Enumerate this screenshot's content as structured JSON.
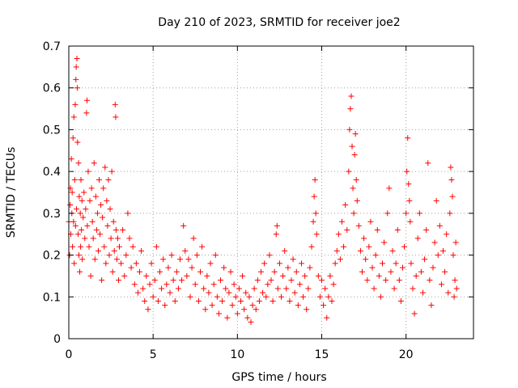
{
  "chart_data": {
    "type": "scatter",
    "title": "Day 210 of 2023, SRMTID for receiver joe2",
    "xlabel": "GPS time / hours",
    "ylabel": "SRMTID / TECUs",
    "xlim": [
      0,
      24
    ],
    "ylim": [
      0,
      0.7
    ],
    "xticks": [
      0,
      5,
      10,
      15,
      20
    ],
    "yticks": [
      0,
      0.1,
      0.2,
      0.3,
      0.4,
      0.5,
      0.6,
      0.7
    ],
    "grid": true,
    "marker": "+",
    "color": "#ff0000",
    "series": [
      {
        "name": "SRMTID",
        "points": [
          [
            0.0,
            0.28
          ],
          [
            0.05,
            0.2
          ],
          [
            0.08,
            0.32
          ],
          [
            0.1,
            0.36
          ],
          [
            0.12,
            0.25
          ],
          [
            0.15,
            0.43
          ],
          [
            0.18,
            0.3
          ],
          [
            0.2,
            0.35
          ],
          [
            0.22,
            0.22
          ],
          [
            0.25,
            0.48
          ],
          [
            0.28,
            0.28
          ],
          [
            0.3,
            0.53
          ],
          [
            0.32,
            0.18
          ],
          [
            0.35,
            0.38
          ],
          [
            0.38,
            0.56
          ],
          [
            0.4,
            0.27
          ],
          [
            0.42,
            0.62
          ],
          [
            0.44,
            0.65
          ],
          [
            0.46,
            0.31
          ],
          [
            0.48,
            0.67
          ],
          [
            0.5,
            0.6
          ],
          [
            0.52,
            0.47
          ],
          [
            0.55,
            0.25
          ],
          [
            0.58,
            0.42
          ],
          [
            0.6,
            0.2
          ],
          [
            0.62,
            0.34
          ],
          [
            0.65,
            0.16
          ],
          [
            0.68,
            0.3
          ],
          [
            0.7,
            0.22
          ],
          [
            0.72,
            0.38
          ],
          [
            0.75,
            0.26
          ],
          [
            0.78,
            0.33
          ],
          [
            0.8,
            0.19
          ],
          [
            0.85,
            0.29
          ],
          [
            0.9,
            0.35
          ],
          [
            0.95,
            0.24
          ],
          [
            1.0,
            0.31
          ],
          [
            1.05,
            0.54
          ],
          [
            1.08,
            0.57
          ],
          [
            1.1,
            0.27
          ],
          [
            1.15,
            0.4
          ],
          [
            1.2,
            0.22
          ],
          [
            1.25,
            0.33
          ],
          [
            1.3,
            0.15
          ],
          [
            1.35,
            0.36
          ],
          [
            1.4,
            0.28
          ],
          [
            1.45,
            0.24
          ],
          [
            1.5,
            0.42
          ],
          [
            1.55,
            0.19
          ],
          [
            1.6,
            0.34
          ],
          [
            1.65,
            0.26
          ],
          [
            1.7,
            0.3
          ],
          [
            1.75,
            0.21
          ],
          [
            1.8,
            0.38
          ],
          [
            1.85,
            0.25
          ],
          [
            1.9,
            0.32
          ],
          [
            1.95,
            0.14
          ],
          [
            2.0,
            0.29
          ],
          [
            2.05,
            0.36
          ],
          [
            2.1,
            0.22
          ],
          [
            2.15,
            0.41
          ],
          [
            2.2,
            0.18
          ],
          [
            2.25,
            0.33
          ],
          [
            2.3,
            0.27
          ],
          [
            2.35,
            0.38
          ],
          [
            2.4,
            0.2
          ],
          [
            2.45,
            0.31
          ],
          [
            2.5,
            0.24
          ],
          [
            2.55,
            0.4
          ],
          [
            2.6,
            0.16
          ],
          [
            2.65,
            0.28
          ],
          [
            2.7,
            0.21
          ],
          [
            2.75,
            0.56
          ],
          [
            2.78,
            0.53
          ],
          [
            2.8,
            0.26
          ],
          [
            2.85,
            0.19
          ],
          [
            2.9,
            0.24
          ],
          [
            2.95,
            0.14
          ],
          [
            3.0,
            0.22
          ],
          [
            3.1,
            0.18
          ],
          [
            3.2,
            0.26
          ],
          [
            3.3,
            0.15
          ],
          [
            3.4,
            0.2
          ],
          [
            3.5,
            0.3
          ],
          [
            3.6,
            0.24
          ],
          [
            3.7,
            0.17
          ],
          [
            3.8,
            0.22
          ],
          [
            3.9,
            0.13
          ],
          [
            4.0,
            0.18
          ],
          [
            4.1,
            0.11
          ],
          [
            4.2,
            0.16
          ],
          [
            4.3,
            0.21
          ],
          [
            4.4,
            0.12
          ],
          [
            4.5,
            0.09
          ],
          [
            4.6,
            0.15
          ],
          [
            4.7,
            0.07
          ],
          [
            4.8,
            0.13
          ],
          [
            4.9,
            0.18
          ],
          [
            5.0,
            0.1
          ],
          [
            5.1,
            0.14
          ],
          [
            5.2,
            0.22
          ],
          [
            5.3,
            0.09
          ],
          [
            5.4,
            0.16
          ],
          [
            5.5,
            0.12
          ],
          [
            5.6,
            0.19
          ],
          [
            5.7,
            0.08
          ],
          [
            5.8,
            0.13
          ],
          [
            5.9,
            0.17
          ],
          [
            6.0,
            0.11
          ],
          [
            6.1,
            0.2
          ],
          [
            6.2,
            0.14
          ],
          [
            6.3,
            0.09
          ],
          [
            6.4,
            0.16
          ],
          [
            6.5,
            0.12
          ],
          [
            6.6,
            0.19
          ],
          [
            6.7,
            0.14
          ],
          [
            6.8,
            0.27
          ],
          [
            6.9,
            0.21
          ],
          [
            7.0,
            0.15
          ],
          [
            7.1,
            0.19
          ],
          [
            7.2,
            0.1
          ],
          [
            7.3,
            0.17
          ],
          [
            7.4,
            0.24
          ],
          [
            7.5,
            0.13
          ],
          [
            7.6,
            0.2
          ],
          [
            7.7,
            0.09
          ],
          [
            7.8,
            0.16
          ],
          [
            7.9,
            0.22
          ],
          [
            8.0,
            0.12
          ],
          [
            8.1,
            0.07
          ],
          [
            8.2,
            0.15
          ],
          [
            8.3,
            0.11
          ],
          [
            8.4,
            0.18
          ],
          [
            8.5,
            0.08
          ],
          [
            8.6,
            0.13
          ],
          [
            8.7,
            0.2
          ],
          [
            8.8,
            0.1
          ],
          [
            8.9,
            0.06
          ],
          [
            9.0,
            0.14
          ],
          [
            9.1,
            0.09
          ],
          [
            9.2,
            0.17
          ],
          [
            9.3,
            0.12
          ],
          [
            9.4,
            0.05
          ],
          [
            9.5,
            0.11
          ],
          [
            9.6,
            0.16
          ],
          [
            9.7,
            0.08
          ],
          [
            9.8,
            0.13
          ],
          [
            9.9,
            0.1
          ],
          [
            10.0,
            0.06
          ],
          [
            10.1,
            0.12
          ],
          [
            10.2,
            0.09
          ],
          [
            10.3,
            0.15
          ],
          [
            10.4,
            0.07
          ],
          [
            10.5,
            0.11
          ],
          [
            10.6,
            0.05
          ],
          [
            10.7,
            0.1
          ],
          [
            10.8,
            0.04
          ],
          [
            10.9,
            0.08
          ],
          [
            11.0,
            0.12
          ],
          [
            11.1,
            0.07
          ],
          [
            11.2,
            0.14
          ],
          [
            11.3,
            0.09
          ],
          [
            11.4,
            0.16
          ],
          [
            11.5,
            0.11
          ],
          [
            11.6,
            0.18
          ],
          [
            11.7,
            0.1
          ],
          [
            11.8,
            0.13
          ],
          [
            11.9,
            0.2
          ],
          [
            12.0,
            0.14
          ],
          [
            12.1,
            0.09
          ],
          [
            12.2,
            0.16
          ],
          [
            12.3,
            0.25
          ],
          [
            12.35,
            0.27
          ],
          [
            12.4,
            0.12
          ],
          [
            12.5,
            0.18
          ],
          [
            12.6,
            0.1
          ],
          [
            12.7,
            0.15
          ],
          [
            12.8,
            0.21
          ],
          [
            12.9,
            0.12
          ],
          [
            13.0,
            0.17
          ],
          [
            13.1,
            0.09
          ],
          [
            13.2,
            0.14
          ],
          [
            13.3,
            0.19
          ],
          [
            13.4,
            0.11
          ],
          [
            13.5,
            0.16
          ],
          [
            13.6,
            0.08
          ],
          [
            13.7,
            0.13
          ],
          [
            13.8,
            0.18
          ],
          [
            13.9,
            0.1
          ],
          [
            14.0,
            0.15
          ],
          [
            14.1,
            0.07
          ],
          [
            14.2,
            0.12
          ],
          [
            14.3,
            0.17
          ],
          [
            14.4,
            0.22
          ],
          [
            14.5,
            0.28
          ],
          [
            14.55,
            0.34
          ],
          [
            14.6,
            0.38
          ],
          [
            14.65,
            0.3
          ],
          [
            14.7,
            0.25
          ],
          [
            14.8,
            0.15
          ],
          [
            14.9,
            0.1
          ],
          [
            15.0,
            0.14
          ],
          [
            15.1,
            0.08
          ],
          [
            15.2,
            0.12
          ],
          [
            15.3,
            0.05
          ],
          [
            15.4,
            0.1
          ],
          [
            15.5,
            0.15
          ],
          [
            15.6,
            0.09
          ],
          [
            15.7,
            0.13
          ],
          [
            15.8,
            0.18
          ],
          [
            15.9,
            0.21
          ],
          [
            16.0,
            0.25
          ],
          [
            16.1,
            0.19
          ],
          [
            16.2,
            0.28
          ],
          [
            16.3,
            0.22
          ],
          [
            16.4,
            0.32
          ],
          [
            16.5,
            0.26
          ],
          [
            16.6,
            0.4
          ],
          [
            16.65,
            0.5
          ],
          [
            16.7,
            0.55
          ],
          [
            16.75,
            0.58
          ],
          [
            16.8,
            0.46
          ],
          [
            16.85,
            0.36
          ],
          [
            16.9,
            0.3
          ],
          [
            16.95,
            0.44
          ],
          [
            17.0,
            0.49
          ],
          [
            17.05,
            0.38
          ],
          [
            17.1,
            0.33
          ],
          [
            17.2,
            0.27
          ],
          [
            17.3,
            0.21
          ],
          [
            17.4,
            0.16
          ],
          [
            17.5,
            0.24
          ],
          [
            17.6,
            0.19
          ],
          [
            17.7,
            0.14
          ],
          [
            17.8,
            0.22
          ],
          [
            17.9,
            0.28
          ],
          [
            18.0,
            0.17
          ],
          [
            18.1,
            0.12
          ],
          [
            18.2,
            0.2
          ],
          [
            18.3,
            0.26
          ],
          [
            18.4,
            0.15
          ],
          [
            18.5,
            0.1
          ],
          [
            18.6,
            0.18
          ],
          [
            18.7,
            0.23
          ],
          [
            18.8,
            0.14
          ],
          [
            18.9,
            0.3
          ],
          [
            19.0,
            0.36
          ],
          [
            19.1,
            0.16
          ],
          [
            19.2,
            0.21
          ],
          [
            19.3,
            0.12
          ],
          [
            19.4,
            0.18
          ],
          [
            19.5,
            0.26
          ],
          [
            19.6,
            0.14
          ],
          [
            19.7,
            0.09
          ],
          [
            19.8,
            0.17
          ],
          [
            19.9,
            0.22
          ],
          [
            20.0,
            0.3
          ],
          [
            20.05,
            0.4
          ],
          [
            20.1,
            0.48
          ],
          [
            20.15,
            0.37
          ],
          [
            20.2,
            0.33
          ],
          [
            20.25,
            0.28
          ],
          [
            20.3,
            0.18
          ],
          [
            20.4,
            0.12
          ],
          [
            20.5,
            0.06
          ],
          [
            20.6,
            0.15
          ],
          [
            20.7,
            0.24
          ],
          [
            20.8,
            0.3
          ],
          [
            20.9,
            0.16
          ],
          [
            21.0,
            0.11
          ],
          [
            21.1,
            0.19
          ],
          [
            21.2,
            0.26
          ],
          [
            21.3,
            0.42
          ],
          [
            21.4,
            0.14
          ],
          [
            21.5,
            0.08
          ],
          [
            21.6,
            0.17
          ],
          [
            21.7,
            0.23
          ],
          [
            21.8,
            0.33
          ],
          [
            21.9,
            0.2
          ],
          [
            22.0,
            0.27
          ],
          [
            22.1,
            0.13
          ],
          [
            22.2,
            0.21
          ],
          [
            22.3,
            0.16
          ],
          [
            22.4,
            0.25
          ],
          [
            22.5,
            0.11
          ],
          [
            22.6,
            0.3
          ],
          [
            22.65,
            0.41
          ],
          [
            22.7,
            0.38
          ],
          [
            22.75,
            0.34
          ],
          [
            22.8,
            0.2
          ],
          [
            22.85,
            0.1
          ],
          [
            22.9,
            0.14
          ],
          [
            22.95,
            0.23
          ],
          [
            23.0,
            0.12
          ]
        ]
      }
    ]
  }
}
